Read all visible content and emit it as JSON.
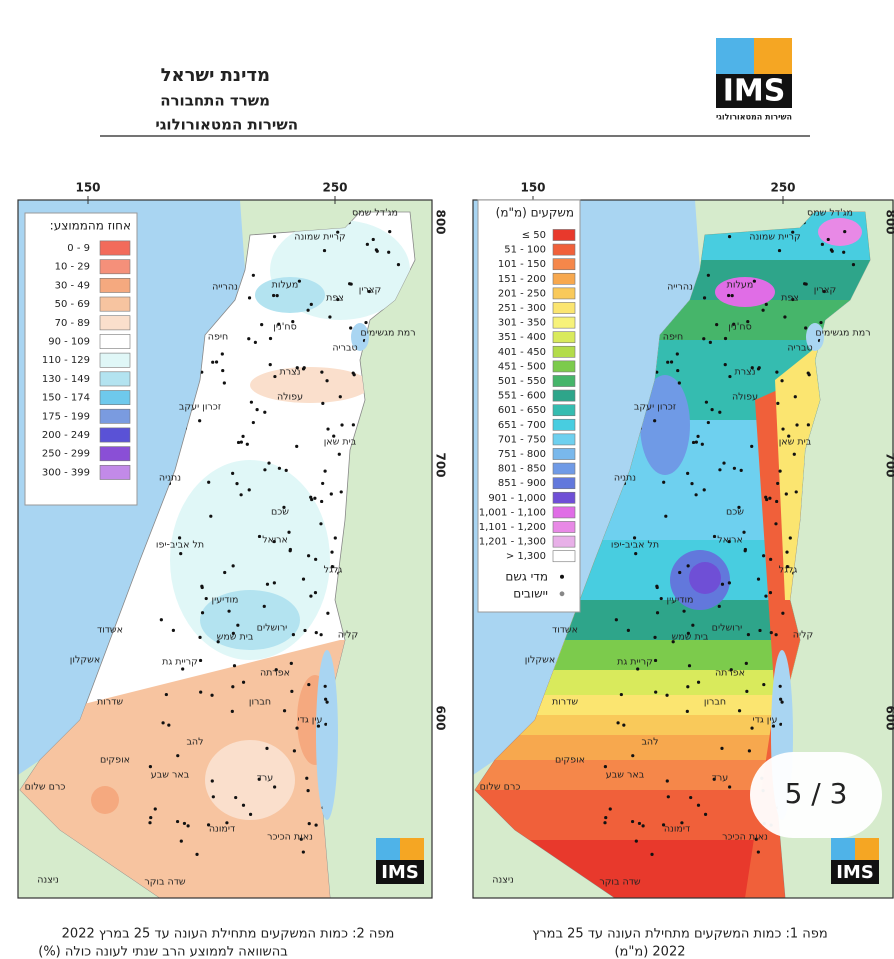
{
  "header": {
    "lines": [
      "מדינת ישראל",
      "משרד התחבורה",
      "השירות המטאורולוגי"
    ],
    "logo": "IMS",
    "logo_sub": "השירות המטאורולוגי"
  },
  "places": [
    "מג'דל שמס",
    "קריית שמונה",
    "קצרין",
    "נהרייה",
    "מעלות",
    "צפת",
    "רמת מגשימים",
    "סח'נין",
    "חיפה",
    "טבריה",
    "נצרת",
    "עפולה",
    "זכרון יעקב",
    "בית שאן",
    "נתניה",
    "שכם",
    "תל אביב-יפו",
    "אריאל",
    "גלגל",
    "מודיעין",
    "אשדוד",
    "ירושלים",
    "בית שמש",
    "קליה",
    "אשקלון",
    "קריית גת",
    "אפרתה",
    "שדרות",
    "חברון",
    "עין גדי",
    "להב",
    "אופקים",
    "באר שבע",
    "ערד",
    "כרם שלום",
    "דימונה",
    "נאות הכיכר",
    "ניצנה",
    "שדה בוקר"
  ],
  "maps": [
    {
      "x_ticks": [
        "150",
        "250"
      ],
      "y_ticks": [
        "800",
        "700",
        "600"
      ],
      "legend_title": "אחוז מהממוצע:",
      "legend": [
        {
          "label": "0 - 9",
          "color": "#f26b5b"
        },
        {
          "label": "10 - 29",
          "color": "#f5907a"
        },
        {
          "label": "30 - 49",
          "color": "#f5a97f"
        },
        {
          "label": "50 - 69",
          "color": "#f7c4a0"
        },
        {
          "label": "70 - 89",
          "color": "#fadfcc"
        },
        {
          "label": "90 - 109",
          "color": "#ffffff"
        },
        {
          "label": "110 - 129",
          "color": "#e0f7f7"
        },
        {
          "label": "130 - 149",
          "color": "#b3e3f0"
        },
        {
          "label": "150 - 174",
          "color": "#6ec9ec"
        },
        {
          "label": "175 - 199",
          "color": "#7a9be0"
        },
        {
          "label": "200 - 249",
          "color": "#5a52d6"
        },
        {
          "label": "250 - 299",
          "color": "#8a4fd6"
        },
        {
          "label": "300 - 399",
          "color": "#c28ae8"
        }
      ],
      "caption": [
        "מפה 2: כמות המשקעים מתחילת העונה עד 25 במרץ 2022",
        "בהשוואה לממוצע הרב שנתי לעונה כולה (%)"
      ]
    },
    {
      "x_ticks": [
        "150",
        "250"
      ],
      "y_ticks": [
        "800",
        "700",
        "600"
      ],
      "legend_title": "משקעים (מ\"מ)",
      "legend": [
        {
          "label": "≤ 50",
          "color": "#e8392c"
        },
        {
          "label": "51 - 100",
          "color": "#f0603a"
        },
        {
          "label": "101 - 150",
          "color": "#f5874a"
        },
        {
          "label": "151 - 200",
          "color": "#f7a84e"
        },
        {
          "label": "201 - 250",
          "color": "#f9c95a"
        },
        {
          "label": "251 - 300",
          "color": "#fbe570"
        },
        {
          "label": "301 - 350",
          "color": "#f7f27a"
        },
        {
          "label": "351 - 400",
          "color": "#d9ea5c"
        },
        {
          "label": "401 - 450",
          "color": "#b3dc4a"
        },
        {
          "label": "451 - 500",
          "color": "#7ccb4c"
        },
        {
          "label": "501 - 550",
          "color": "#46b56a"
        },
        {
          "label": "551 - 600",
          "color": "#2ea58a"
        },
        {
          "label": "601 - 650",
          "color": "#35bcb0"
        },
        {
          "label": "651 - 700",
          "color": "#48cde0"
        },
        {
          "label": "701 - 750",
          "color": "#6ed0ef"
        },
        {
          "label": "751 - 800",
          "color": "#79b8ec"
        },
        {
          "label": "801 - 850",
          "color": "#6f9ae6"
        },
        {
          "label": "851 - 900",
          "color": "#6278dc"
        },
        {
          "label": "901 - 1,000",
          "color": "#6f4fd6"
        },
        {
          "label": "1,001 - 1,100",
          "color": "#e06de6"
        },
        {
          "label": "1,101 - 1,200",
          "color": "#e889e6"
        },
        {
          "label": "1,201 - 1,300",
          "color": "#e8b0e8"
        },
        {
          "label": "> 1,300",
          "color": "#ffffff"
        }
      ],
      "symbols": [
        "מדי גשם",
        "יישובים"
      ],
      "caption": [
        "מפה 1: כמות המשקעים מתחילת העונה עד 25 במרץ",
        "2022 (מ\"מ)"
      ]
    }
  ],
  "page_indicator": "5 / 3"
}
